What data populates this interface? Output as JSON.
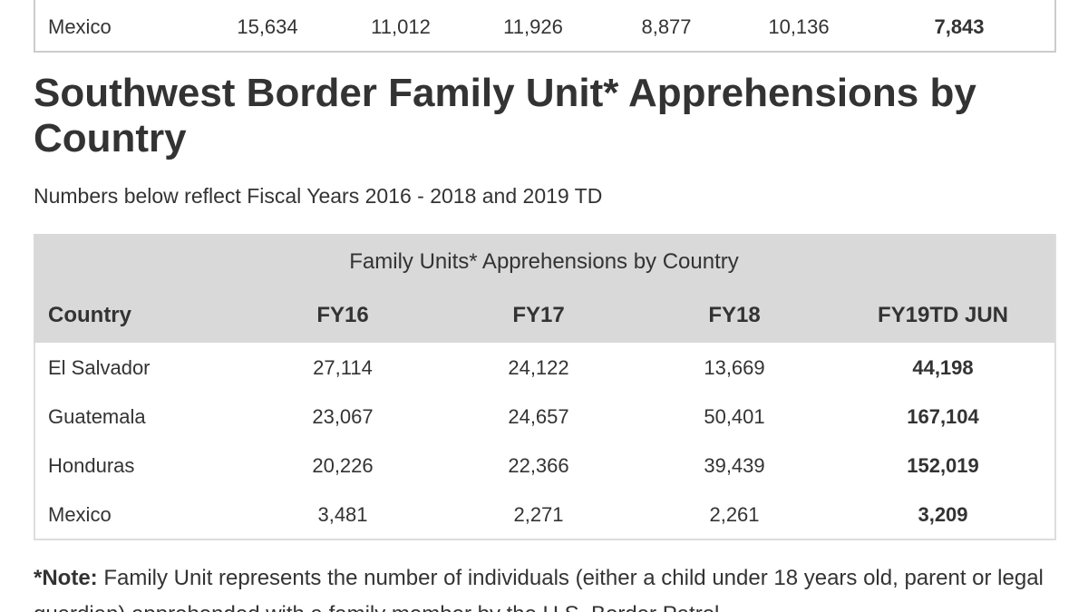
{
  "top_table": {
    "rows": [
      [
        "Mexico",
        "15,634",
        "11,012",
        "11,926",
        "8,877",
        "10,136",
        "7,843"
      ]
    ]
  },
  "title": "Southwest Border Family Unit* Apprehensions by Country",
  "subtitle": "Numbers below reflect Fiscal Years 2016 - 2018 and 2019 TD",
  "table": {
    "caption": "Family Units* Apprehensions by Country",
    "columns": [
      "Country",
      "FY16",
      "FY17",
      "FY18",
      "FY19TD JUN"
    ],
    "rows": [
      [
        "El Salvador",
        "27,114",
        "24,122",
        "13,669",
        "44,198"
      ],
      [
        "Guatemala",
        "23,067",
        "24,657",
        "50,401",
        "167,104"
      ],
      [
        "Honduras",
        "20,226",
        "22,366",
        "39,439",
        "152,019"
      ],
      [
        "Mexico",
        "3,481",
        "2,271",
        "2,261",
        "3,209"
      ]
    ]
  },
  "note": {
    "label": "*Note:",
    "text": "Family Unit represents the number of individuals (either a child under 18 years old, parent or legal guardian) apprehended with a family member by the U.S. Border Patrol."
  }
}
